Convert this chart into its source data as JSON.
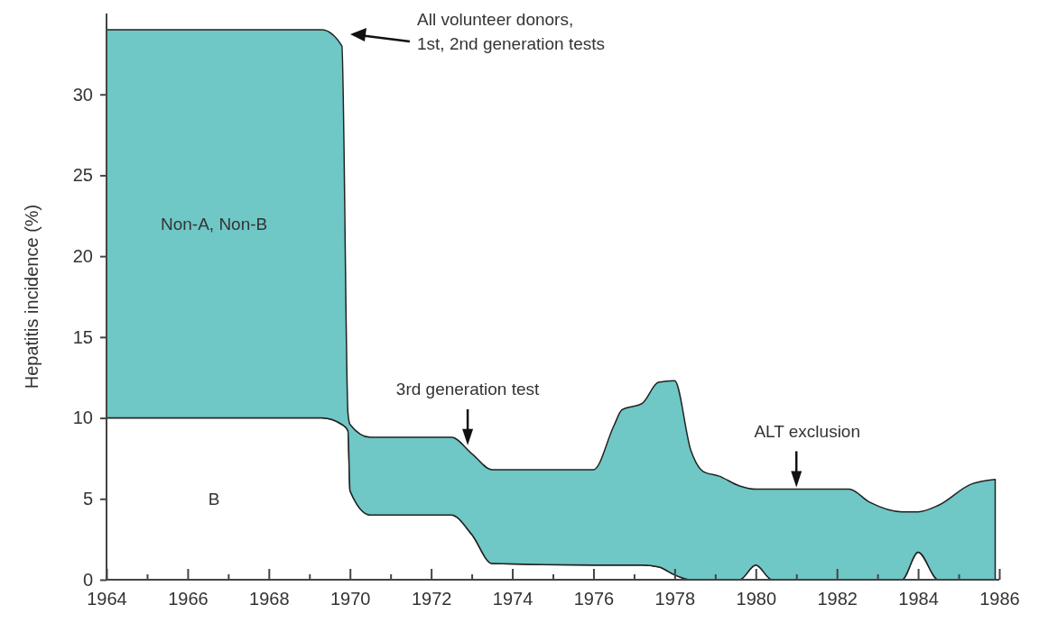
{
  "chart_data": {
    "type": "area",
    "stacked": true,
    "ylabel": "Hepatitis incidence (%)",
    "x": [
      1964,
      1969.3,
      1969.8,
      1969.95,
      1970,
      1970.5,
      1972.5,
      1973,
      1973.5,
      1976,
      1976.5,
      1976.7,
      1977.2,
      1977.6,
      1978,
      1978.4,
      1978.7,
      1979.1,
      1979.6,
      1980,
      1980.4,
      1982.3,
      1982.8,
      1983.6,
      1984,
      1984.5,
      1985.3,
      1985.9
    ],
    "series": [
      {
        "name": "B",
        "color": "#ffffff",
        "values": [
          10,
          10,
          9.6,
          9.2,
          5.5,
          4.0,
          4.0,
          2.8,
          1.0,
          0.9,
          0.9,
          0.9,
          0.9,
          0.8,
          0.3,
          0,
          0,
          0,
          0,
          0.9,
          0,
          0,
          0,
          0,
          1.7,
          0,
          0,
          0
        ]
      },
      {
        "name": "Non-A, Non-B",
        "color": "#6fc7c6",
        "values": [
          24,
          24,
          23.4,
          1.1,
          4.1,
          4.8,
          4.8,
          5.0,
          5.8,
          5.9,
          8.6,
          9.6,
          10.0,
          11.4,
          12.0,
          8,
          6.7,
          6.4,
          5.8,
          4.7,
          5.6,
          5.6,
          4.8,
          4.2,
          2.5,
          4.6,
          5.9,
          6.2
        ]
      }
    ],
    "xlim": [
      1964,
      1986
    ],
    "ylim": [
      0,
      35
    ],
    "xticks": [
      1964,
      {
        "value": 1965,
        "label": null
      },
      1966,
      {
        "value": 1967,
        "label": null
      },
      1968,
      {
        "value": 1969,
        "label": null
      },
      1970,
      {
        "value": 1971,
        "label": null
      },
      1972,
      {
        "value": 1973,
        "label": null
      },
      1974,
      {
        "value": 1975,
        "label": null
      },
      1976,
      {
        "value": 1977,
        "label": null
      },
      1978,
      {
        "value": 1979,
        "label": null
      },
      1980,
      {
        "value": 1981,
        "label": null
      },
      1982,
      {
        "value": 1983,
        "label": null
      },
      1984,
      {
        "value": 1985,
        "label": null
      },
      1986
    ],
    "yticks": [
      0,
      5,
      10,
      15,
      20,
      25,
      30
    ],
    "annotations": [
      "All volunteer donors,\n1st, 2nd generation tests",
      {
        "text": "3rd generation test",
        "x": 1972.9,
        "y": 8.2
      },
      {
        "text": "ALT exclusion",
        "x": 1981,
        "y": 5.6
      }
    ]
  }
}
